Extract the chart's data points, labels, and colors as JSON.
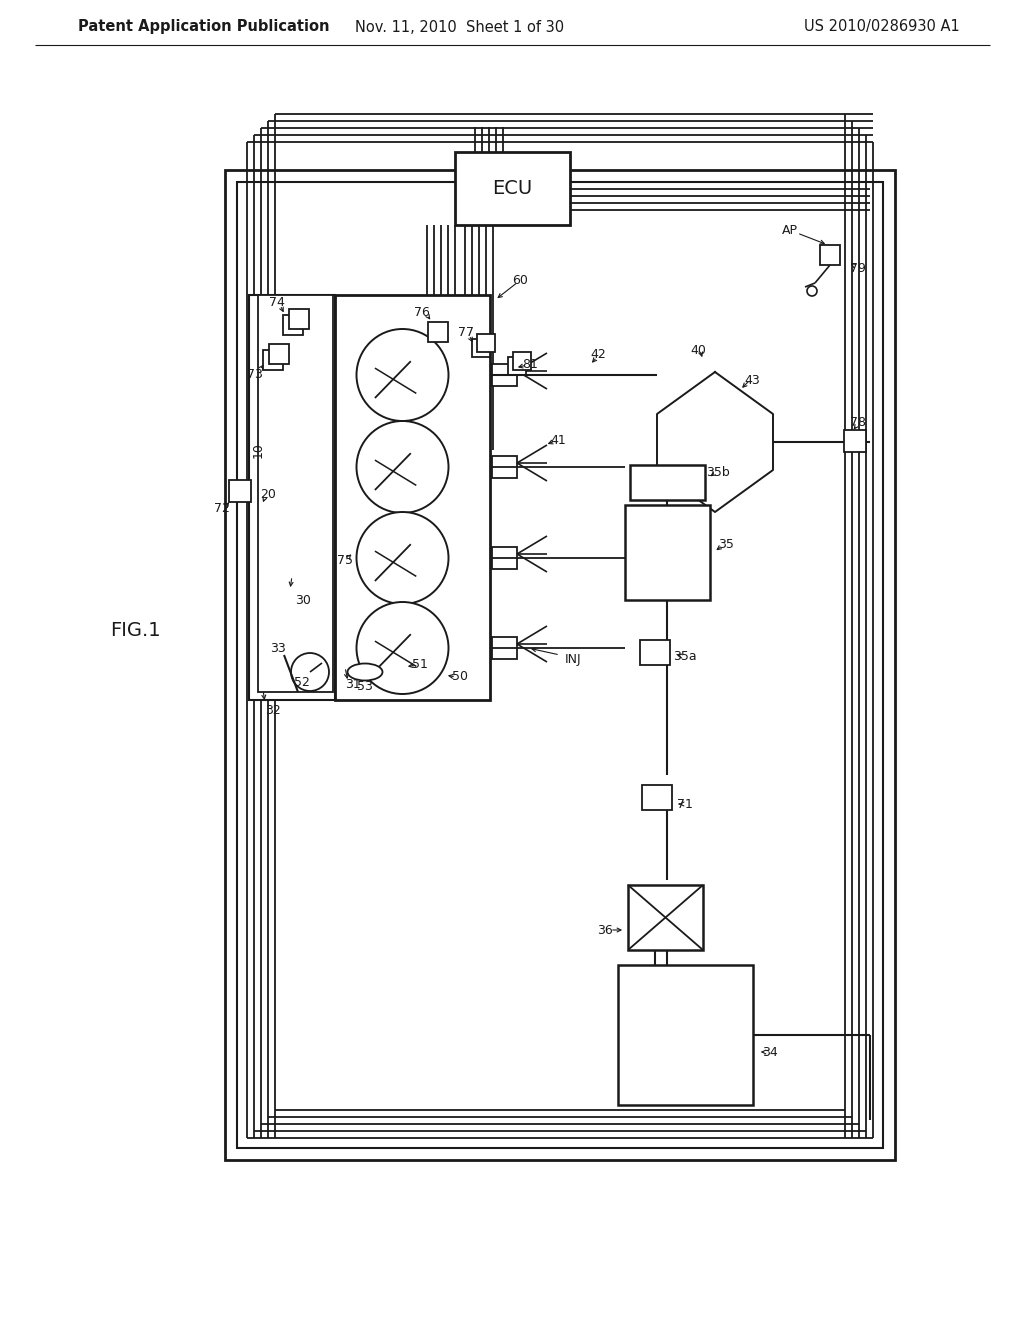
{
  "bg_color": "#ffffff",
  "line_color": "#1a1a1a",
  "header_left": "Patent Application Publication",
  "header_mid": "Nov. 11, 2010  Sheet 1 of 30",
  "header_right": "US 2010/0286930 A1"
}
